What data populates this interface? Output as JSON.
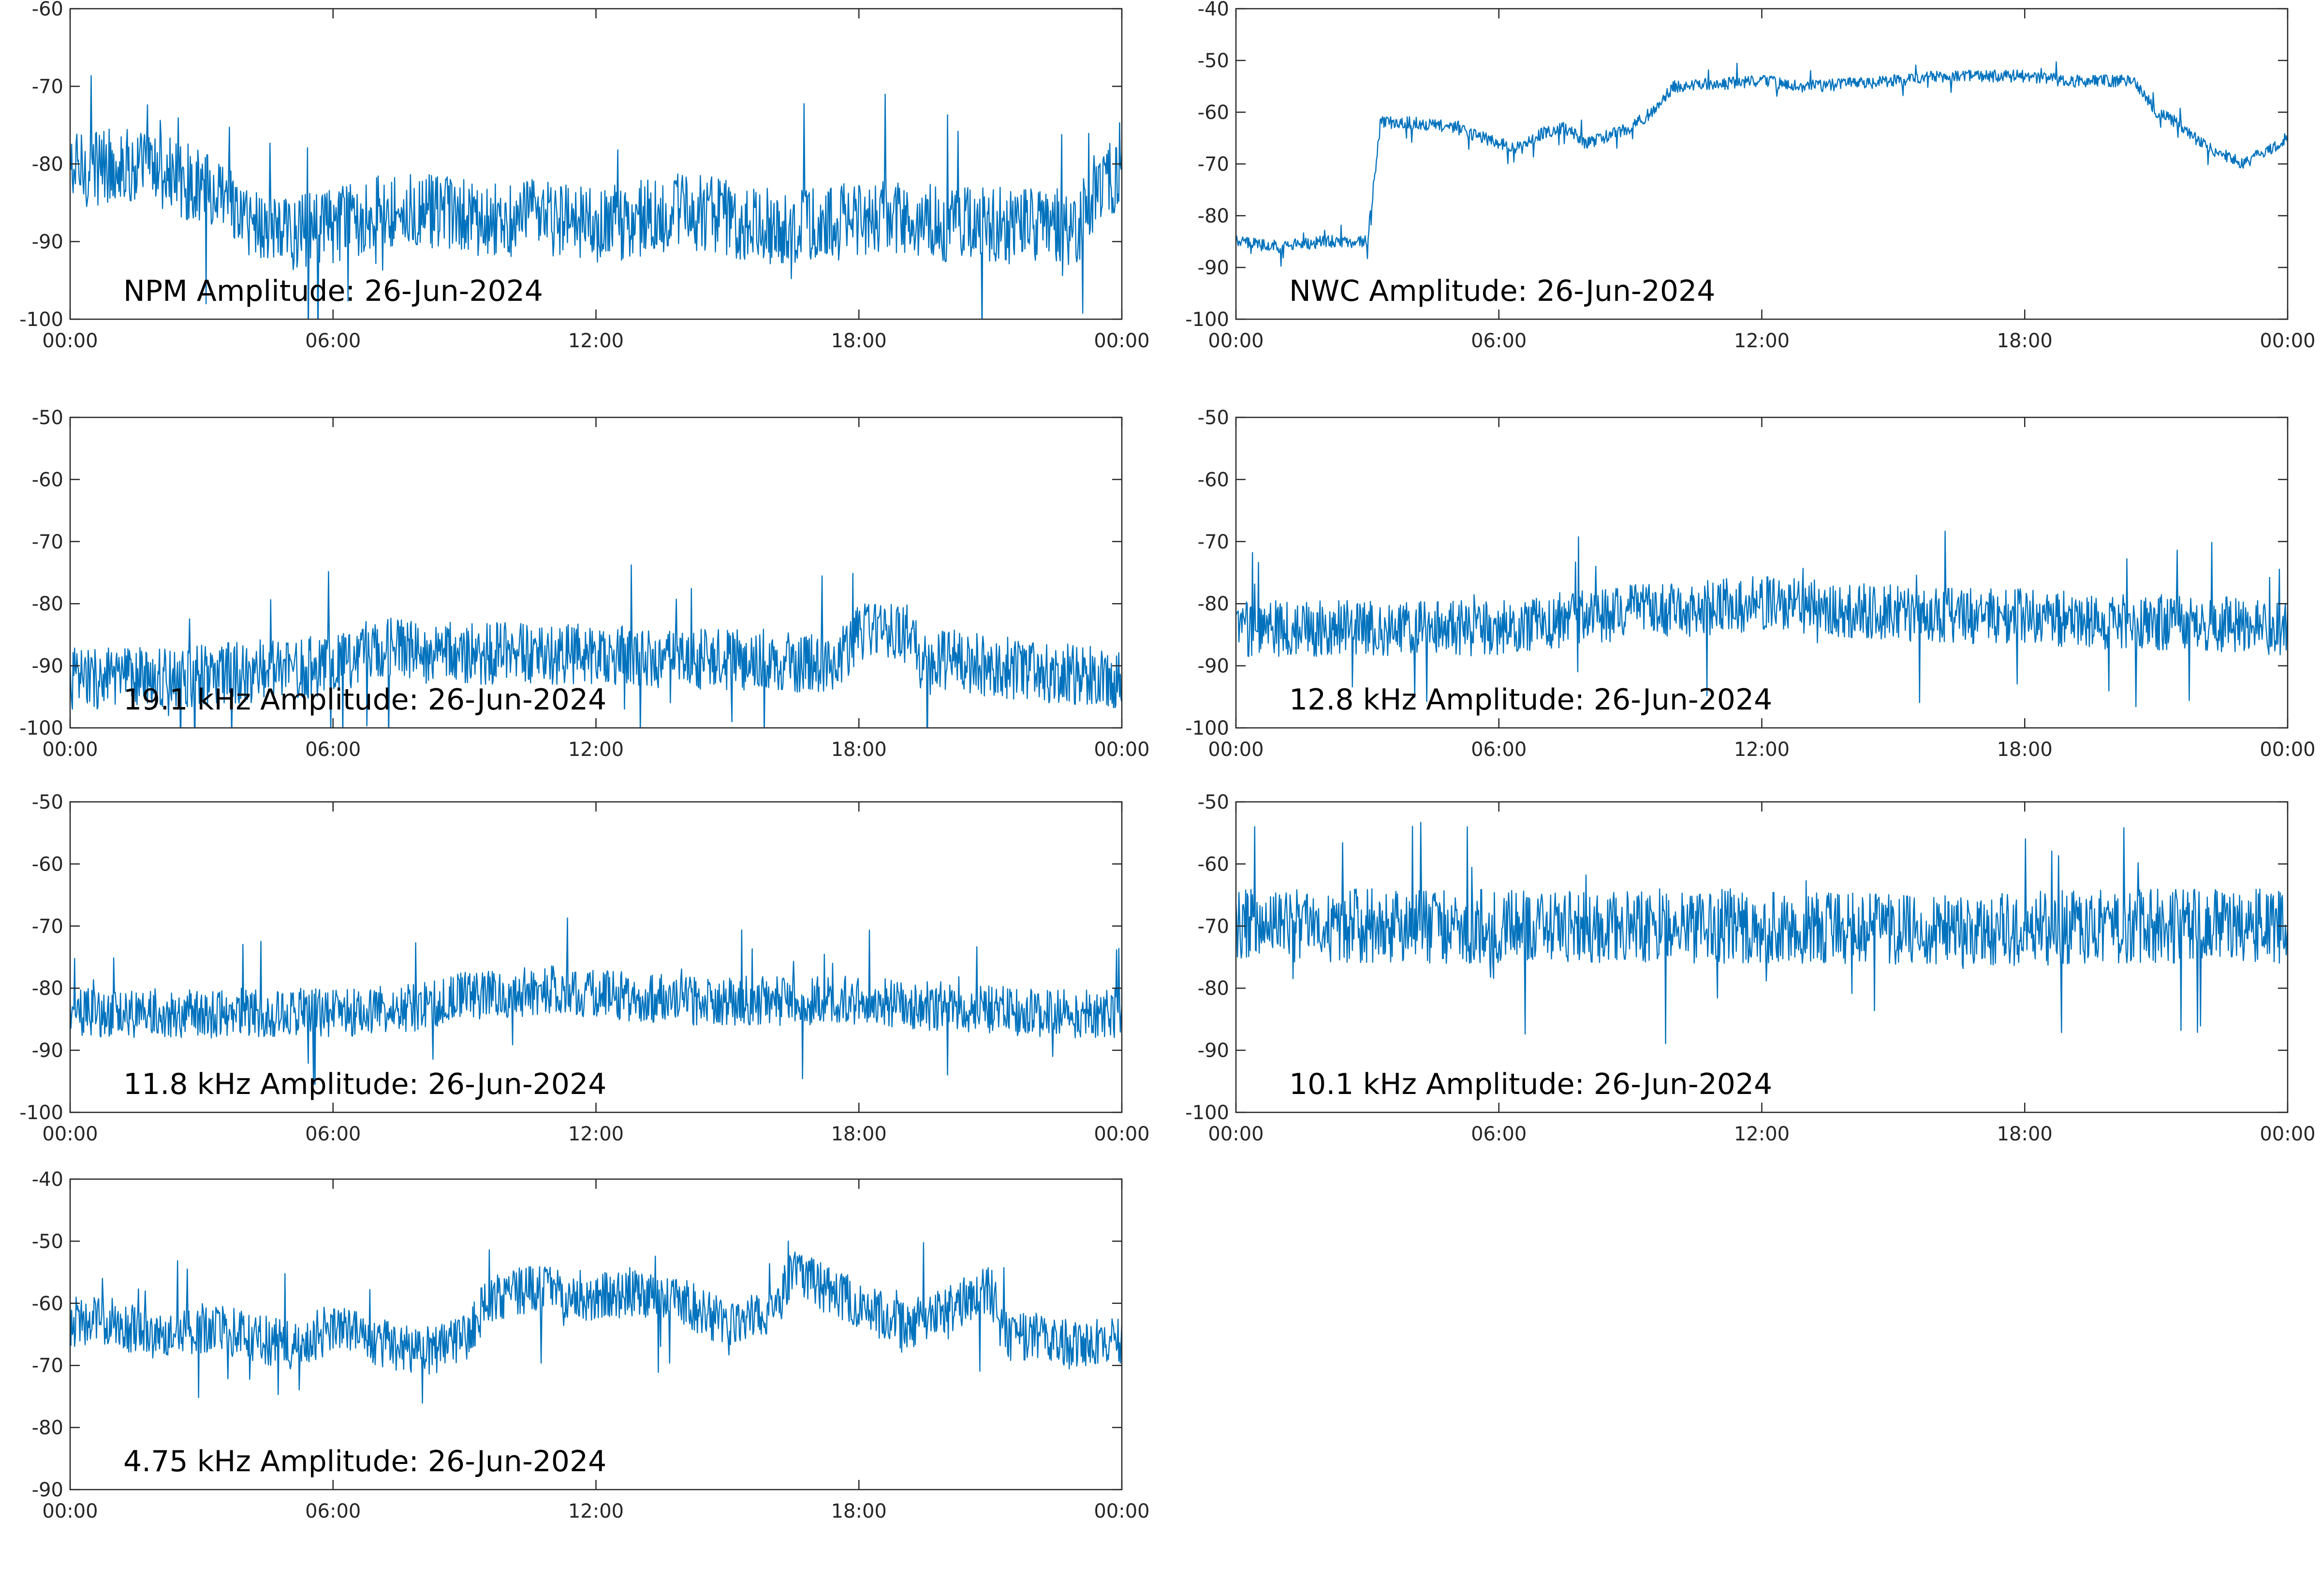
{
  "figure": {
    "background": "#ffffff",
    "line_color": "#0072bd"
  },
  "chart_data": [
    {
      "type": "line",
      "label": "NPM Amplitude: 26-Jun-2024",
      "x_ticks": [
        "00:00",
        "06:00",
        "12:00",
        "18:00",
        "00:00"
      ],
      "xlim_hours": [
        0,
        24
      ],
      "ylim": [
        -100,
        -60
      ],
      "y_ticks": [
        -100,
        -90,
        -80,
        -70,
        -60
      ],
      "grid": false,
      "series": [
        {
          "x": [
            0,
            1,
            2,
            3,
            4,
            5,
            6,
            7,
            8,
            9,
            10,
            11,
            12,
            13,
            14,
            15,
            16,
            17,
            18,
            19,
            20,
            21,
            22,
            23,
            23.6,
            24
          ],
          "y": [
            -81,
            -80,
            -81,
            -83,
            -87,
            -89,
            -88,
            -86,
            -86,
            -87,
            -87,
            -87,
            -88,
            -87,
            -86,
            -87,
            -88,
            -88,
            -87,
            -87,
            -88,
            -88,
            -88,
            -88,
            -81,
            -82
          ],
          "noise": 5
        }
      ]
    },
    {
      "type": "line",
      "label": "NWC Amplitude: 26-Jun-2024",
      "x_ticks": [
        "00:00",
        "06:00",
        "12:00",
        "18:00",
        "00:00"
      ],
      "xlim_hours": [
        0,
        24
      ],
      "ylim": [
        -100,
        -40
      ],
      "y_ticks": [
        -100,
        -90,
        -80,
        -70,
        -60,
        -50,
        -40
      ],
      "grid": false,
      "series": [
        {
          "x": [
            0,
            1,
            2,
            3,
            3.3,
            4,
            5,
            6,
            6.5,
            7,
            7.5,
            8,
            9,
            9.5,
            10,
            12,
            13,
            15,
            16,
            18,
            19,
            20,
            20.5,
            21,
            21.5,
            22,
            22.5,
            23,
            24
          ],
          "y": [
            -85,
            -86,
            -85,
            -85,
            -62,
            -62,
            -63,
            -66,
            -67,
            -64,
            -63,
            -66,
            -63,
            -60,
            -55,
            -54,
            -55,
            -54,
            -53,
            -53,
            -54,
            -54,
            -54,
            -60,
            -62,
            -66,
            -68,
            -70,
            -65
          ],
          "noise": 1.2
        }
      ]
    },
    {
      "type": "line",
      "label": "19.1 kHz Amplitude: 26-Jun-2024",
      "x_ticks": [
        "00:00",
        "06:00",
        "12:00",
        "18:00",
        "00:00"
      ],
      "xlim_hours": [
        0,
        24
      ],
      "ylim": [
        -100,
        -50
      ],
      "y_ticks": [
        -100,
        -90,
        -80,
        -70,
        -60,
        -50
      ],
      "grid": false,
      "series": [
        {
          "x": [
            0,
            2,
            4,
            6,
            7,
            8,
            10,
            12,
            14,
            16,
            17.5,
            18,
            19,
            19.5,
            20,
            22,
            24
          ],
          "y": [
            -92,
            -92,
            -91,
            -90,
            -87,
            -88,
            -88,
            -88,
            -89,
            -89,
            -90,
            -84,
            -84,
            -90,
            -89,
            -91,
            -92
          ],
          "noise": 5
        }
      ]
    },
    {
      "type": "line",
      "label": "12.8 kHz Amplitude: 26-Jun-2024",
      "x_ticks": [
        "00:00",
        "06:00",
        "12:00",
        "18:00",
        "00:00"
      ],
      "xlim_hours": [
        0,
        24
      ],
      "ylim": [
        -100,
        -50
      ],
      "y_ticks": [
        -100,
        -90,
        -80,
        -70,
        -60,
        -50
      ],
      "grid": false,
      "series": [
        {
          "x": [
            0,
            2,
            4,
            6,
            7,
            8,
            10,
            12,
            14,
            16,
            18,
            20,
            22,
            24
          ],
          "y": [
            -84,
            -84,
            -84,
            -84,
            -83,
            -82,
            -81,
            -80,
            -81,
            -82,
            -82,
            -83,
            -83,
            -84
          ],
          "noise": 4.5
        }
      ]
    },
    {
      "type": "line",
      "label": "11.8 kHz Amplitude: 26-Jun-2024",
      "x_ticks": [
        "00:00",
        "06:00",
        "12:00",
        "18:00",
        "00:00"
      ],
      "xlim_hours": [
        0,
        24
      ],
      "ylim": [
        -100,
        -50
      ],
      "y_ticks": [
        -100,
        -90,
        -80,
        -70,
        -60,
        -50
      ],
      "grid": false,
      "series": [
        {
          "x": [
            0,
            2,
            4,
            6,
            8,
            9,
            10,
            11,
            12,
            14,
            16,
            18,
            20,
            22,
            24
          ],
          "y": [
            -84,
            -84,
            -84,
            -84,
            -83,
            -81,
            -81,
            -80,
            -81,
            -82,
            -82,
            -82,
            -83,
            -84,
            -84
          ],
          "noise": 4
        }
      ]
    },
    {
      "type": "line",
      "label": "10.1 kHz Amplitude: 26-Jun-2024",
      "x_ticks": [
        "00:00",
        "06:00",
        "12:00",
        "18:00",
        "00:00"
      ],
      "xlim_hours": [
        0,
        24
      ],
      "ylim": [
        -100,
        -50
      ],
      "y_ticks": [
        -100,
        -90,
        -80,
        -70,
        -60,
        -50
      ],
      "grid": false,
      "series": [
        {
          "x": [
            0,
            4,
            8,
            12,
            16,
            20,
            24
          ],
          "y": [
            -70,
            -70,
            -70,
            -70,
            -71,
            -70,
            -70
          ],
          "noise": 6
        }
      ]
    },
    {
      "type": "line",
      "label": "4.75 kHz Amplitude: 26-Jun-2024",
      "x_ticks": [
        "00:00",
        "06:00",
        "12:00",
        "18:00",
        "00:00"
      ],
      "xlim_hours": [
        0,
        24
      ],
      "ylim": [
        -90,
        -40
      ],
      "y_ticks": [
        -90,
        -80,
        -70,
        -60,
        -50,
        -40
      ],
      "grid": false,
      "series": [
        {
          "x": [
            0,
            1,
            2,
            3,
            4,
            5,
            6,
            7,
            8,
            9,
            9.5,
            10,
            11,
            12,
            13,
            14,
            15,
            16,
            16.5,
            17,
            18,
            19,
            20,
            21,
            21.5,
            22,
            23,
            24
          ],
          "y": [
            -63,
            -63,
            -66,
            -64,
            -65,
            -67,
            -64,
            -66,
            -68,
            -66,
            -60,
            -58,
            -58,
            -59,
            -58,
            -60,
            -63,
            -62,
            -55,
            -57,
            -60,
            -64,
            -61,
            -58,
            -66,
            -65,
            -67,
            -66
          ],
          "noise": 4
        }
      ]
    }
  ]
}
